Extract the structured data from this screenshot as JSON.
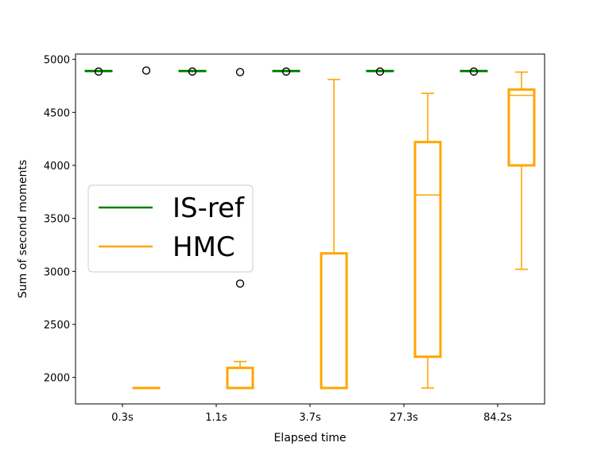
{
  "chart_data": {
    "type": "box",
    "xlabel": "Elapsed time",
    "ylabel": "Sum of second moments",
    "categories": [
      "0.3s",
      "1.1s",
      "3.7s",
      "27.3s",
      "84.2s"
    ],
    "ylim": [
      1750,
      5050
    ],
    "yticks": [
      2000,
      2500,
      3000,
      3500,
      4000,
      4500,
      5000
    ],
    "grid": false,
    "legend_position": "center-left",
    "series": [
      {
        "name": "IS-ref",
        "color": "#008000",
        "boxes": [
          {
            "min": 4890,
            "q1": 4890,
            "median": 4890,
            "q3": 4890,
            "max": 4890,
            "fliers": [
              4885
            ]
          },
          {
            "min": 4890,
            "q1": 4890,
            "median": 4890,
            "q3": 4890,
            "max": 4890,
            "fliers": [
              4885
            ]
          },
          {
            "min": 4890,
            "q1": 4890,
            "median": 4890,
            "q3": 4890,
            "max": 4890,
            "fliers": [
              4885
            ]
          },
          {
            "min": 4890,
            "q1": 4890,
            "median": 4890,
            "q3": 4890,
            "max": 4890,
            "fliers": [
              4885
            ]
          },
          {
            "min": 4890,
            "q1": 4890,
            "median": 4890,
            "q3": 4890,
            "max": 4890,
            "fliers": [
              4885
            ]
          }
        ]
      },
      {
        "name": "HMC",
        "color": "#FFA500",
        "boxes": [
          {
            "min": 1900,
            "q1": 1900,
            "median": 1900,
            "q3": 1900,
            "max": 1900,
            "fliers": [
              4895
            ]
          },
          {
            "min": 1900,
            "q1": 1900,
            "median": 1900,
            "q3": 2090,
            "max": 2150,
            "fliers": [
              4880,
              2885
            ]
          },
          {
            "min": 1900,
            "q1": 1900,
            "median": 1900,
            "q3": 3170,
            "max": 4810,
            "fliers": []
          },
          {
            "min": 1900,
            "q1": 2195,
            "median": 3720,
            "q3": 4220,
            "max": 4680,
            "fliers": []
          },
          {
            "min": 3020,
            "q1": 4000,
            "median": 4660,
            "q3": 4715,
            "max": 4880,
            "fliers": []
          }
        ]
      }
    ]
  }
}
